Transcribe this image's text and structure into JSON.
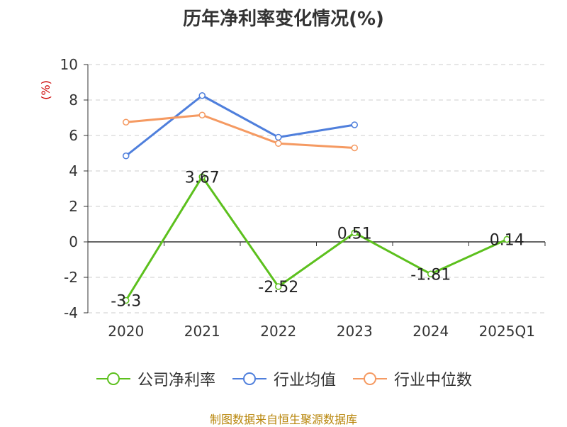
{
  "chart_data": {
    "type": "line",
    "title": "历年净利率变化情况(%)",
    "ylabel": "(%)",
    "xlabel": "",
    "categories": [
      "2020",
      "2021",
      "2022",
      "2023",
      "2024",
      "2025Q1"
    ],
    "ylim": [
      -4,
      10
    ],
    "yticks": [
      "10",
      "8",
      "6",
      "4",
      "2",
      "0",
      "-2",
      "-4"
    ],
    "grid": true,
    "legend_position": "bottom",
    "series": [
      {
        "name": "公司净利率",
        "color": "#5cc01d",
        "values": [
          -3.3,
          3.67,
          -2.52,
          0.51,
          -1.81,
          0.14
        ],
        "labels": [
          "-3.3",
          "3.67",
          "-2.52",
          "0.51",
          "-1.81",
          "0.14"
        ]
      },
      {
        "name": "行业均值",
        "color": "#4f7fdc",
        "values": [
          4.85,
          8.25,
          5.9,
          6.6,
          null,
          null
        ]
      },
      {
        "name": "行业中位数",
        "color": "#f59a62",
        "values": [
          6.75,
          7.15,
          5.55,
          5.3,
          null,
          null
        ]
      }
    ]
  },
  "source": "制图数据来自恒生聚源数据库"
}
